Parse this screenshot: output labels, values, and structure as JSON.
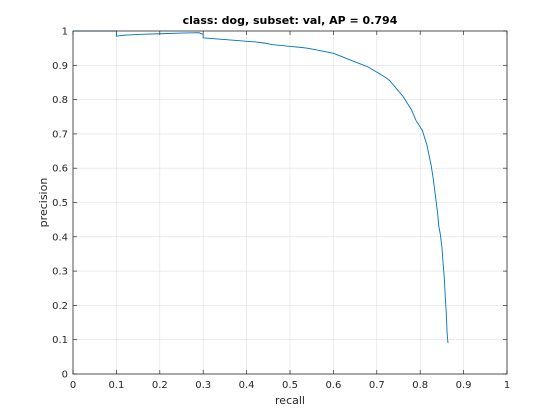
{
  "chart_data": {
    "type": "line",
    "title": "class: dog, subset: val, AP = 0.794",
    "xlabel": "recall",
    "ylabel": "precision",
    "xlim": [
      0,
      1
    ],
    "ylim": [
      0,
      1
    ],
    "xticks": [
      "0",
      "0.1",
      "0.2",
      "0.3",
      "0.4",
      "0.5",
      "0.6",
      "0.7",
      "0.8",
      "0.9",
      "1"
    ],
    "yticks": [
      "0",
      "0.1",
      "0.2",
      "0.3",
      "0.4",
      "0.5",
      "0.6",
      "0.7",
      "0.8",
      "0.9",
      "1"
    ],
    "grid": true,
    "colors": {
      "line": "#0072bd",
      "grid": "#dfdfdf",
      "axis": "#262626"
    },
    "series": [
      {
        "x": [
          0.0,
          0.02,
          0.05,
          0.08,
          0.1,
          0.1,
          0.12,
          0.15,
          0.2,
          0.25,
          0.29,
          0.3,
          0.3,
          0.32,
          0.35,
          0.38,
          0.4,
          0.42,
          0.44,
          0.46,
          0.48,
          0.5,
          0.52,
          0.54,
          0.56,
          0.58,
          0.6,
          0.62,
          0.64,
          0.66,
          0.68,
          0.7,
          0.72,
          0.73,
          0.74,
          0.75,
          0.76,
          0.77,
          0.78,
          0.785,
          0.79,
          0.795,
          0.8,
          0.805,
          0.81,
          0.815,
          0.82,
          0.825,
          0.83,
          0.835,
          0.84,
          0.843,
          0.846,
          0.85,
          0.853,
          0.856,
          0.858,
          0.86,
          0.862,
          0.864
        ],
        "y": [
          1.0,
          1.0,
          1.0,
          1.0,
          1.0,
          0.985,
          0.988,
          0.99,
          0.992,
          0.994,
          0.995,
          0.99,
          0.98,
          0.978,
          0.975,
          0.972,
          0.97,
          0.968,
          0.965,
          0.96,
          0.958,
          0.955,
          0.953,
          0.95,
          0.945,
          0.94,
          0.935,
          0.925,
          0.915,
          0.905,
          0.895,
          0.88,
          0.865,
          0.855,
          0.84,
          0.825,
          0.81,
          0.79,
          0.77,
          0.755,
          0.74,
          0.73,
          0.72,
          0.71,
          0.69,
          0.67,
          0.64,
          0.61,
          0.57,
          0.52,
          0.47,
          0.43,
          0.41,
          0.37,
          0.32,
          0.27,
          0.22,
          0.18,
          0.12,
          0.09
        ]
      }
    ]
  }
}
